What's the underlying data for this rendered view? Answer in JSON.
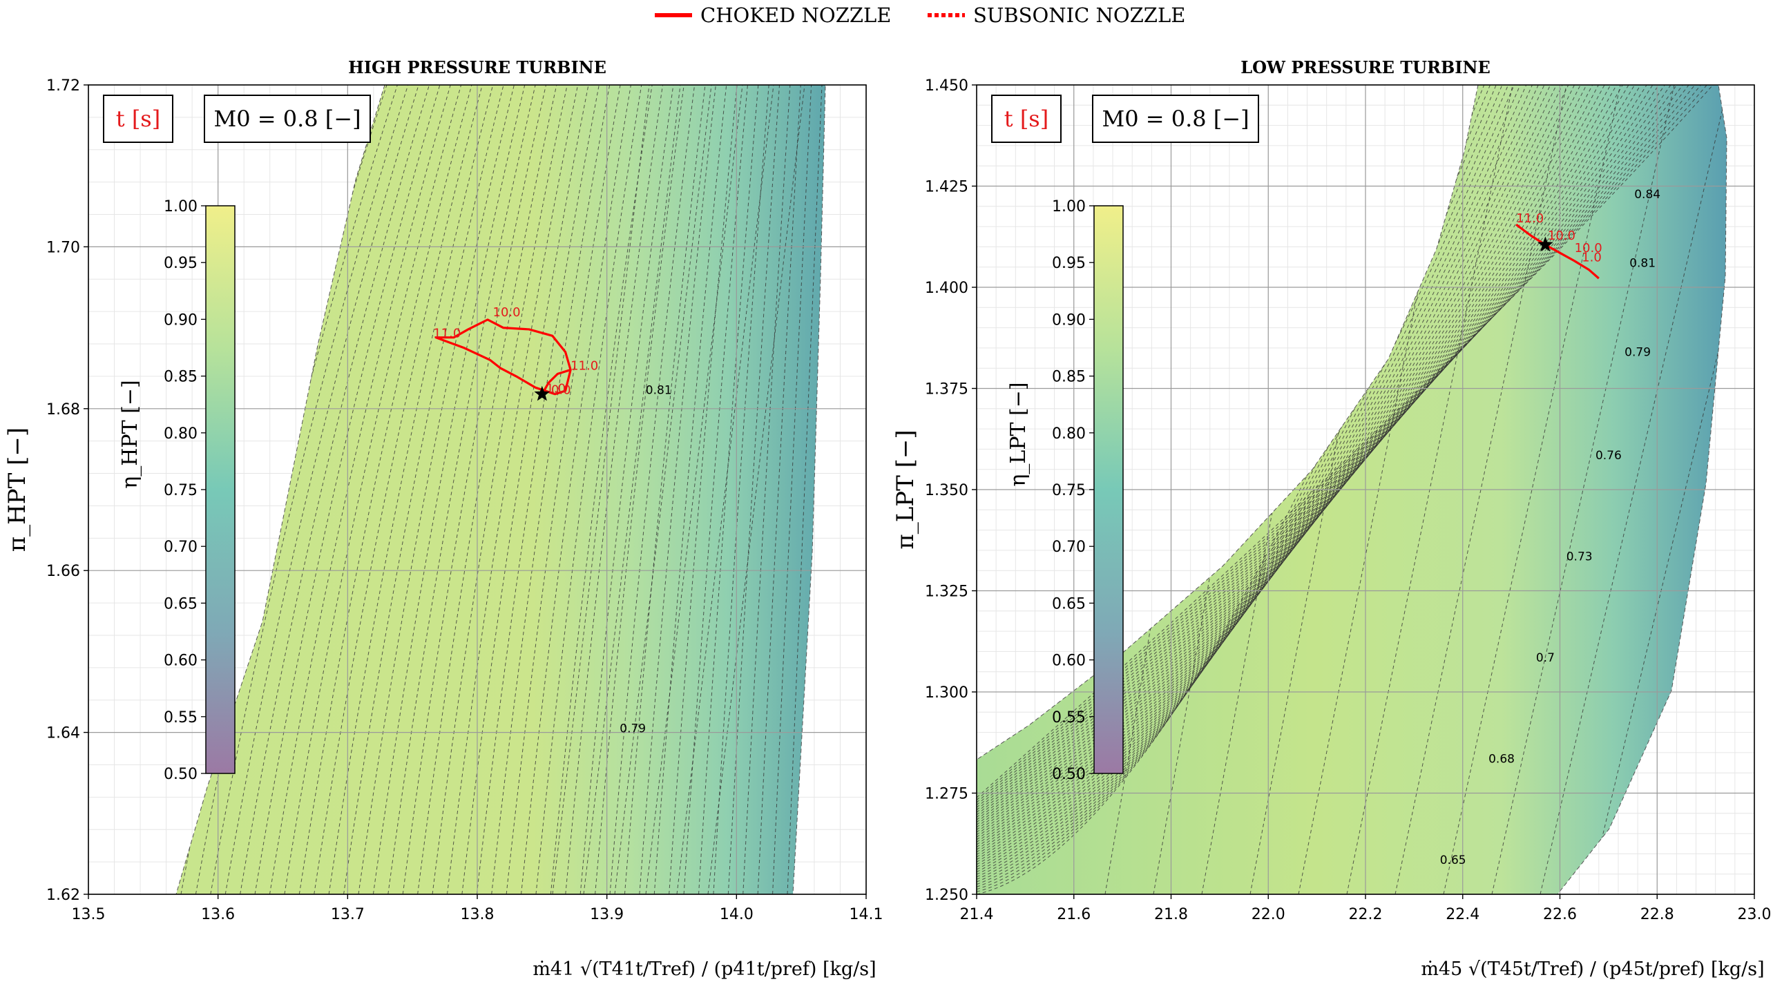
{
  "legend": {
    "items": [
      {
        "label": "CHOKED NOZZLE",
        "color": "#ff0000",
        "style": "solid"
      },
      {
        "label": "SUBSONIC NOZZLE",
        "color": "#ff0000",
        "style": "dotted"
      }
    ],
    "placement": "top-center"
  },
  "colormap": {
    "name": "viridis-light",
    "stops": [
      "#9c79a4",
      "#7fa9b6",
      "#78c9b7",
      "#b7e29a",
      "#f0ef8a"
    ]
  },
  "chart_data": [
    {
      "type": "contour",
      "title": "HIGH PRESSURE TURBINE",
      "xlim": [
        13.5,
        14.1
      ],
      "ylim": [
        1.62,
        1.72
      ],
      "xticks": [
        "13.5",
        "13.6",
        "13.7",
        "13.8",
        "13.9",
        "14.0",
        "14.1"
      ],
      "yticks": [
        "1.62",
        "1.64",
        "1.66",
        "1.68",
        "1.70",
        "1.72"
      ],
      "ylabel": "π_HPT [−]",
      "xlabel": "ṁ41 √(T41t/Tref) / (p41t/pref) [kg/s]",
      "annotation_boxes": [
        "t [s]",
        "M0 = 0.8 [−]"
      ],
      "colorbar": {
        "label": "η_HPT [−]",
        "range": [
          0.5,
          1.0
        ],
        "ticks": [
          "0.50",
          "0.55",
          "0.60",
          "0.65",
          "0.70",
          "0.75",
          "0.80",
          "0.85",
          "0.90",
          "0.95",
          "1.00"
        ]
      },
      "contour_labels": [
        {
          "text": "0.81",
          "x": 13.94,
          "y": 1.6818
        },
        {
          "text": "0.79",
          "x": 13.92,
          "y": 1.64
        }
      ],
      "trajectory": {
        "series_style": "CHOKED NOZZLE",
        "x": [
          13.85,
          13.855,
          13.862,
          13.872,
          13.868,
          13.858,
          13.84,
          13.82,
          13.808,
          13.793,
          13.782,
          13.768,
          13.79,
          13.81,
          13.818,
          13.83,
          13.845,
          13.86,
          13.868,
          13.872
        ],
        "y": [
          1.6818,
          1.6832,
          1.6843,
          1.6848,
          1.687,
          1.689,
          1.6898,
          1.69,
          1.691,
          1.6898,
          1.6888,
          1.6888,
          1.6875,
          1.686,
          1.685,
          1.684,
          1.6826,
          1.6818,
          1.6822,
          1.6848
        ],
        "time_labels": [
          {
            "text": "11.0",
            "x": 13.766,
            "y": 1.6888
          },
          {
            "text": "11.0",
            "x": 13.872,
            "y": 1.6848
          },
          {
            "text": "10.0",
            "x": 13.812,
            "y": 1.6914
          },
          {
            "text": "1.0",
            "x": 13.853,
            "y": 1.682
          },
          {
            "text": "0.0",
            "x": 13.857,
            "y": 1.6818
          }
        ],
        "operating_point": {
          "x": 13.85,
          "y": 1.6818
        }
      }
    },
    {
      "type": "contour",
      "title": "LOW PRESSURE TURBINE",
      "xlim": [
        21.4,
        23.0
      ],
      "ylim": [
        1.25,
        1.45
      ],
      "xticks": [
        "21.4",
        "21.6",
        "21.8",
        "22.0",
        "22.2",
        "22.4",
        "22.6",
        "22.8",
        "23.0"
      ],
      "yticks": [
        "1.250",
        "1.275",
        "1.300",
        "1.325",
        "1.350",
        "1.375",
        "1.400",
        "1.425",
        "1.450"
      ],
      "ylabel": "π_LPT [−]",
      "xlabel": "ṁ45 √(T45t/Tref) / (p45t/pref) [kg/s]",
      "annotation_boxes": [
        "t [s]",
        "M0 = 0.8 [−]"
      ],
      "colorbar": {
        "label": "η_LPT [−]",
        "range": [
          0.5,
          1.0
        ],
        "ticks": [
          "0.50",
          "0.55",
          "0.60",
          "0.65",
          "0.70",
          "0.75",
          "0.80",
          "0.85",
          "0.90",
          "0.95",
          "1.00"
        ]
      },
      "contour_labels": [
        {
          "text": "0.84",
          "x": 22.78,
          "y": 1.422
        },
        {
          "text": "0.81",
          "x": 22.77,
          "y": 1.405
        },
        {
          "text": "0.79",
          "x": 22.76,
          "y": 1.383
        },
        {
          "text": "0.76",
          "x": 22.7,
          "y": 1.3575
        },
        {
          "text": "0.73",
          "x": 22.64,
          "y": 1.3325
        },
        {
          "text": "0.7",
          "x": 22.57,
          "y": 1.3075
        },
        {
          "text": "0.68",
          "x": 22.48,
          "y": 1.2825
        },
        {
          "text": "0.65",
          "x": 22.38,
          "y": 1.2575
        }
      ],
      "trajectory": {
        "series_style": "CHOKED NOZZLE",
        "x": [
          22.51,
          22.54,
          22.57,
          22.6,
          22.63,
          22.66,
          22.68
        ],
        "y": [
          1.4155,
          1.4128,
          1.4105,
          1.4085,
          1.4065,
          1.4043,
          1.4022
        ],
        "time_labels": [
          {
            "text": "11.0",
            "x": 22.51,
            "y": 1.416
          },
          {
            "text": "10.0",
            "x": 22.575,
            "y": 1.4118
          },
          {
            "text": "10.0",
            "x": 22.63,
            "y": 1.4087
          },
          {
            "text": "1.0",
            "x": 22.645,
            "y": 1.4064
          }
        ],
        "operating_point": {
          "x": 22.57,
          "y": 1.4105
        }
      }
    }
  ]
}
